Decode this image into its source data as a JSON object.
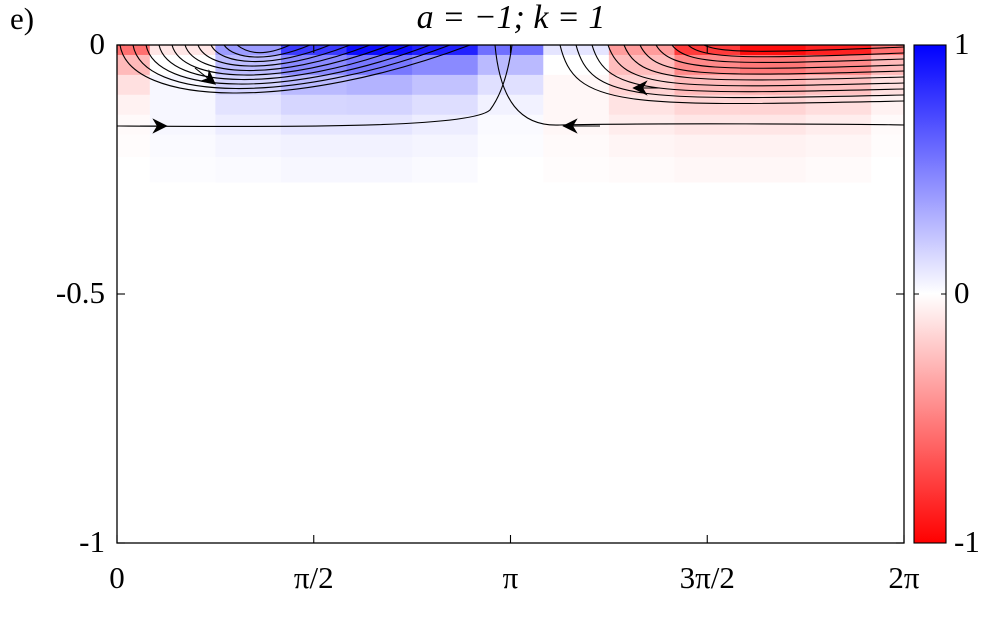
{
  "chart_data": {
    "type": "heatmap",
    "panel_label": "e)",
    "title": "a = −1; k = 1",
    "x": [
      0,
      0.5236,
      1.0472,
      1.5708,
      2.0944,
      2.618,
      3.1416,
      3.6652,
      4.1888,
      4.7124,
      5.236,
      5.7596,
      6.2832
    ],
    "y": [
      0,
      -0.04,
      -0.08,
      -0.12,
      -0.16,
      -0.2,
      -0.25
    ],
    "z": [
      [
        -0.56,
        -0.1,
        0.39,
        0.77,
        0.95,
        0.87,
        0.56,
        0.1,
        -0.39,
        -0.77,
        -0.95,
        -0.87,
        -0.56
      ],
      [
        -0.27,
        0,
        0.26,
        0.46,
        0.53,
        0.46,
        0.27,
        0,
        -0.26,
        -0.46,
        -0.53,
        -0.46,
        -0.27
      ],
      [
        -0.12,
        0.03,
        0.17,
        0.27,
        0.3,
        0.24,
        0.12,
        -0.03,
        -0.17,
        -0.27,
        -0.3,
        -0.24,
        -0.12
      ],
      [
        -0.05,
        0.03,
        0.11,
        0.16,
        0.17,
        0.13,
        0.05,
        -0.03,
        -0.11,
        -0.16,
        -0.17,
        -0.13,
        -0.05
      ],
      [
        -0.02,
        0.03,
        0.07,
        0.1,
        0.1,
        0.07,
        0.02,
        -0.03,
        -0.07,
        -0.1,
        -0.1,
        -0.07,
        -0.02
      ],
      [
        -0.01,
        0.02,
        0.04,
        0.05,
        0.05,
        0.04,
        0.01,
        -0.02,
        -0.04,
        -0.05,
        -0.05,
        -0.04,
        -0.01
      ],
      [
        0,
        0.01,
        0.02,
        0.03,
        0.03,
        0.02,
        0,
        -0.01,
        -0.02,
        -0.03,
        -0.03,
        -0.02,
        0
      ]
    ],
    "colormap": [
      "#ff0000",
      "#ffffff",
      "#0000ff"
    ],
    "xlim": [
      0,
      6.2832
    ],
    "ylim": [
      -1,
      0
    ],
    "clim": [
      -1,
      1
    ],
    "xticks": [
      0,
      {
        "value": 1.5708,
        "label": "π/2"
      },
      {
        "value": 3.1416,
        "label": "π"
      },
      {
        "value": 4.7124,
        "label": "3π/2"
      },
      {
        "value": 6.2832,
        "label": "2π"
      }
    ],
    "yticks": [
      0,
      -0.5,
      -1
    ],
    "cticks": [
      1,
      0,
      -1
    ]
  }
}
